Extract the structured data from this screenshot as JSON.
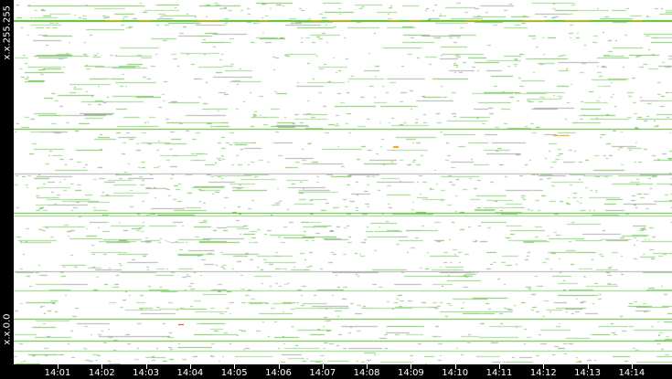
{
  "chart_data": {
    "type": "heatmap",
    "x_tick_labels": [
      "14:01",
      "14:02",
      "14:03",
      "14:04",
      "14:05",
      "14:06",
      "14:07",
      "14:08",
      "14:09",
      "14:10",
      "14:11",
      "14:12",
      "14:13",
      "14:14"
    ],
    "y_labels": {
      "top": "x.x.255.255",
      "bottom": "x.x.0.0"
    },
    "colors": {
      "low": "#8fd47a",
      "mid": "#5cb82a",
      "high": "#f0a000",
      "peak": "#e03000",
      "background": "#ffffff",
      "frame": "#000000"
    }
  }
}
